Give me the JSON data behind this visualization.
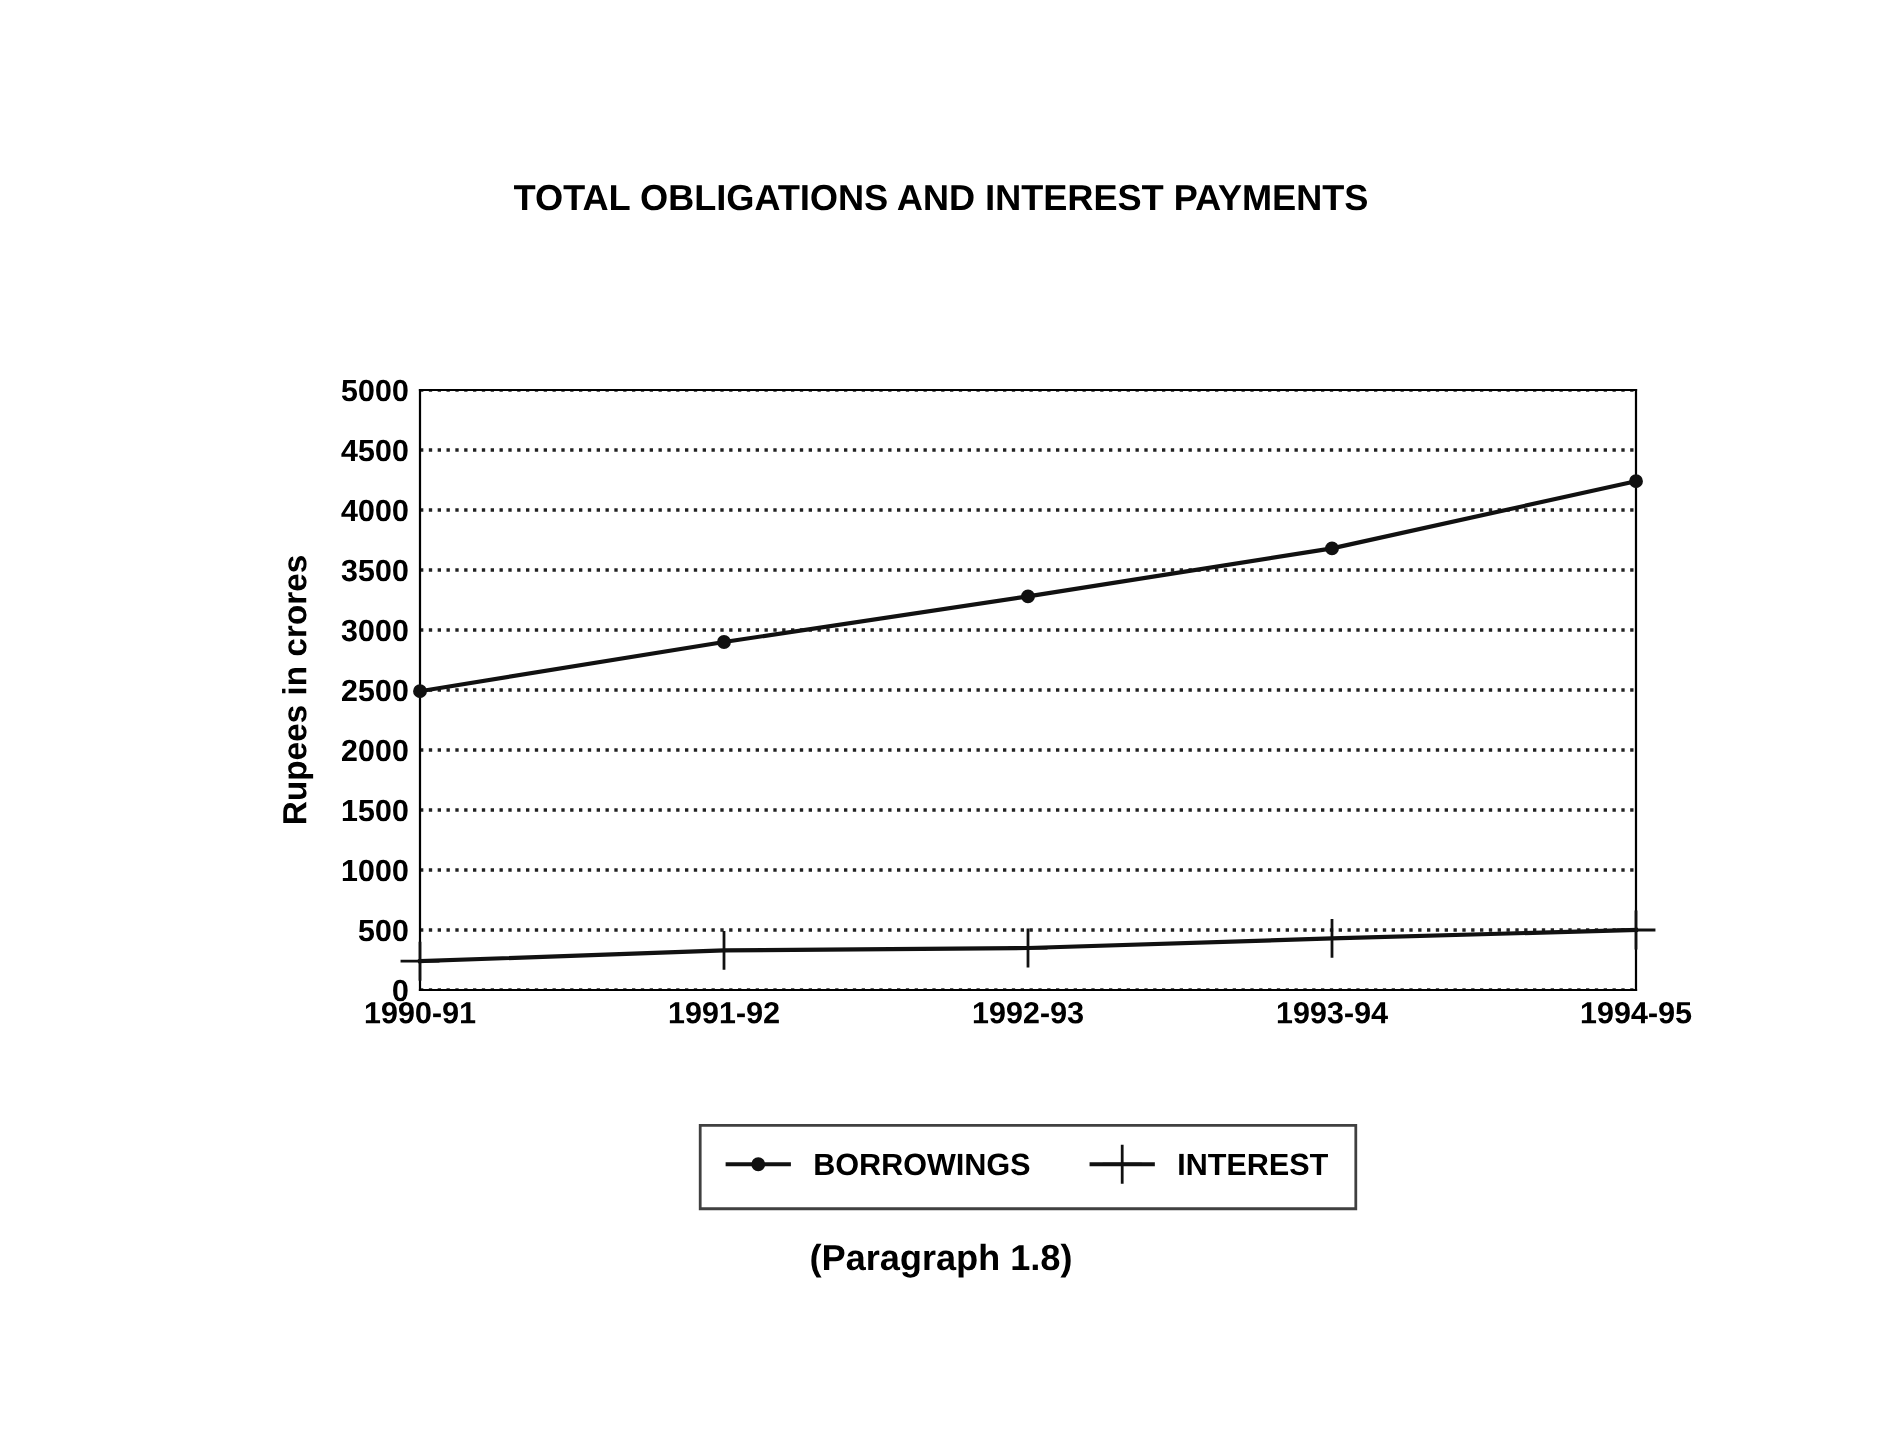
{
  "chart_data": {
    "type": "line",
    "title": "TOTAL OBLIGATIONS AND INTEREST PAYMENTS",
    "ylabel": "Rupees in crores",
    "categories": [
      "1990-91",
      "1991-92",
      "1992-93",
      "1993-94",
      "1994-95"
    ],
    "series": [
      {
        "name": "BORROWINGS",
        "color": "#111111",
        "marker": "circle",
        "values": [
          2490,
          2900,
          3280,
          3680,
          4240
        ]
      },
      {
        "name": "INTEREST",
        "color": "#111111",
        "marker": "cross",
        "values": [
          240,
          330,
          350,
          430,
          500
        ]
      }
    ],
    "ylim": [
      0,
      5000
    ],
    "yticks": [
      0,
      500,
      1000,
      1500,
      2000,
      2500,
      3000,
      3500,
      4000,
      4500,
      5000
    ],
    "grid": "y",
    "legend": "bottom",
    "line_style": "solid",
    "annotations": [
      "(Paragraph 1.8)"
    ]
  }
}
